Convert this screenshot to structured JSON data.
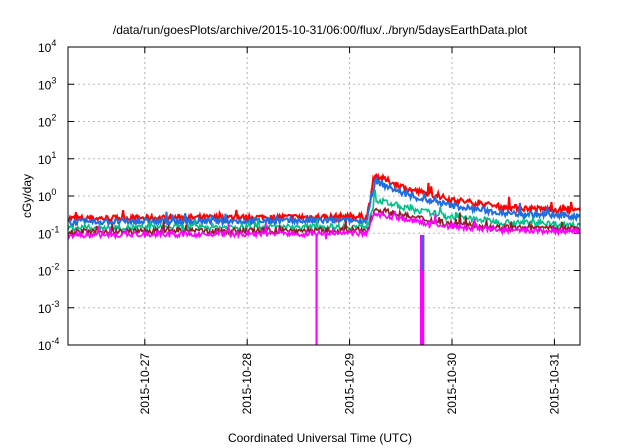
{
  "chart_data": {
    "type": "line",
    "title": "/data/run/goesPlots/archive/2015-10-31/06:00/flux/../bryn/5daysEarthData.plot",
    "xlabel": "Coordinated Universal Time (UTC)",
    "ylabel": "cGy/day",
    "yscale": "log",
    "ylim": [
      0.0001,
      10000
    ],
    "xlim": [
      "2015-10-26T06:00",
      "2015-10-31T06:00"
    ],
    "x_ticks": [
      "2015-10-27",
      "2015-10-28",
      "2015-10-29",
      "2015-10-30",
      "2015-10-31"
    ],
    "y_ticks": [
      {
        "base": "10",
        "exp": "4"
      },
      {
        "base": "10",
        "exp": "3"
      },
      {
        "base": "10",
        "exp": "2"
      },
      {
        "base": "10",
        "exp": "1"
      },
      {
        "base": "10",
        "exp": "0"
      },
      {
        "base": "10",
        "exp": "-1"
      },
      {
        "base": "10",
        "exp": "-2"
      },
      {
        "base": "10",
        "exp": "-3"
      },
      {
        "base": "10",
        "exp": "-4"
      }
    ],
    "grid": true,
    "legend": "none",
    "series": [
      {
        "color": "#ff0000",
        "points": [
          [
            "2015-10-26T06:00",
            0.25
          ],
          [
            "2015-10-29T04:00",
            0.28
          ],
          [
            "2015-10-29T06:00",
            3.5
          ],
          [
            "2015-10-29T14:00",
            1.5
          ],
          [
            "2015-10-30T00:00",
            0.8
          ],
          [
            "2015-10-30T12:00",
            0.5
          ],
          [
            "2015-10-31T06:00",
            0.4
          ]
        ]
      },
      {
        "color": "#1f6fe0",
        "points": [
          [
            "2015-10-26T06:00",
            0.2
          ],
          [
            "2015-10-29T04:00",
            0.22
          ],
          [
            "2015-10-29T06:00",
            2.5
          ],
          [
            "2015-10-29T14:00",
            1.0
          ],
          [
            "2015-10-30T00:00",
            0.55
          ],
          [
            "2015-10-30T12:00",
            0.35
          ],
          [
            "2015-10-31T06:00",
            0.28
          ]
        ]
      },
      {
        "color": "#00c08a",
        "points": [
          [
            "2015-10-26T06:00",
            0.14
          ],
          [
            "2015-10-29T04:00",
            0.15
          ],
          [
            "2015-10-29T06:00",
            0.8
          ],
          [
            "2015-10-29T14:00",
            0.45
          ],
          [
            "2015-10-30T00:00",
            0.28
          ],
          [
            "2015-10-30T12:00",
            0.2
          ],
          [
            "2015-10-31T06:00",
            0.17
          ]
        ]
      },
      {
        "color": "#8b2020",
        "points": [
          [
            "2015-10-26T06:00",
            0.11
          ],
          [
            "2015-10-29T04:00",
            0.12
          ],
          [
            "2015-10-29T06:00",
            0.45
          ],
          [
            "2015-10-29T14:00",
            0.28
          ],
          [
            "2015-10-30T00:00",
            0.18
          ],
          [
            "2015-10-30T12:00",
            0.14
          ],
          [
            "2015-10-31T06:00",
            0.13
          ]
        ]
      },
      {
        "color": "#ff00ff",
        "points": [
          [
            "2015-10-26T06:00",
            0.09
          ],
          [
            "2015-10-29T04:00",
            0.1
          ],
          [
            "2015-10-29T06:00",
            0.35
          ],
          [
            "2015-10-29T14:00",
            0.22
          ],
          [
            "2015-10-30T00:00",
            0.15
          ],
          [
            "2015-10-30T12:00",
            0.12
          ],
          [
            "2015-10-31T06:00",
            0.11
          ]
        ]
      }
    ],
    "dropouts": [
      {
        "color": "#ff00ff",
        "start": "2015-10-28T16:00",
        "end": "2015-10-28T16:30",
        "value": 0.0001
      },
      {
        "color": "#ff00ff",
        "start": "2015-10-29T16:30",
        "end": "2015-10-29T17:30",
        "value": 0.0001
      },
      {
        "color": "#1f6fe0",
        "start": "2015-10-29T17:00",
        "end": "2015-10-29T17:30",
        "value": 0.01
      }
    ]
  }
}
